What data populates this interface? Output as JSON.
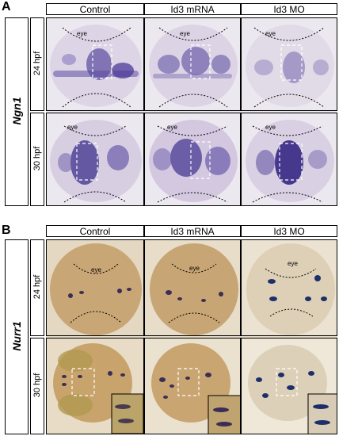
{
  "panels": [
    {
      "letter": "A",
      "gene": "Ngn1",
      "columns": [
        "Control",
        "Id3 mRNA",
        "Id3 MO"
      ],
      "stages": [
        "24 hpf",
        "30 hpf"
      ],
      "eye_label": "eye"
    },
    {
      "letter": "B",
      "gene": "Nurr1",
      "columns": [
        "Control",
        "Id3 mRNA",
        "Id3 MO"
      ],
      "stages": [
        "24 hpf",
        "30 hpf"
      ],
      "eye_label": "eye"
    }
  ],
  "colors": {
    "panel_a_background": "#eae6ee",
    "panel_b_background": "#d8c6a6",
    "stain": "#3b2f8a",
    "embryo_a": "#d9d2e4",
    "embryo_b": "#c9a777",
    "dashed_box": "#ffffff"
  }
}
